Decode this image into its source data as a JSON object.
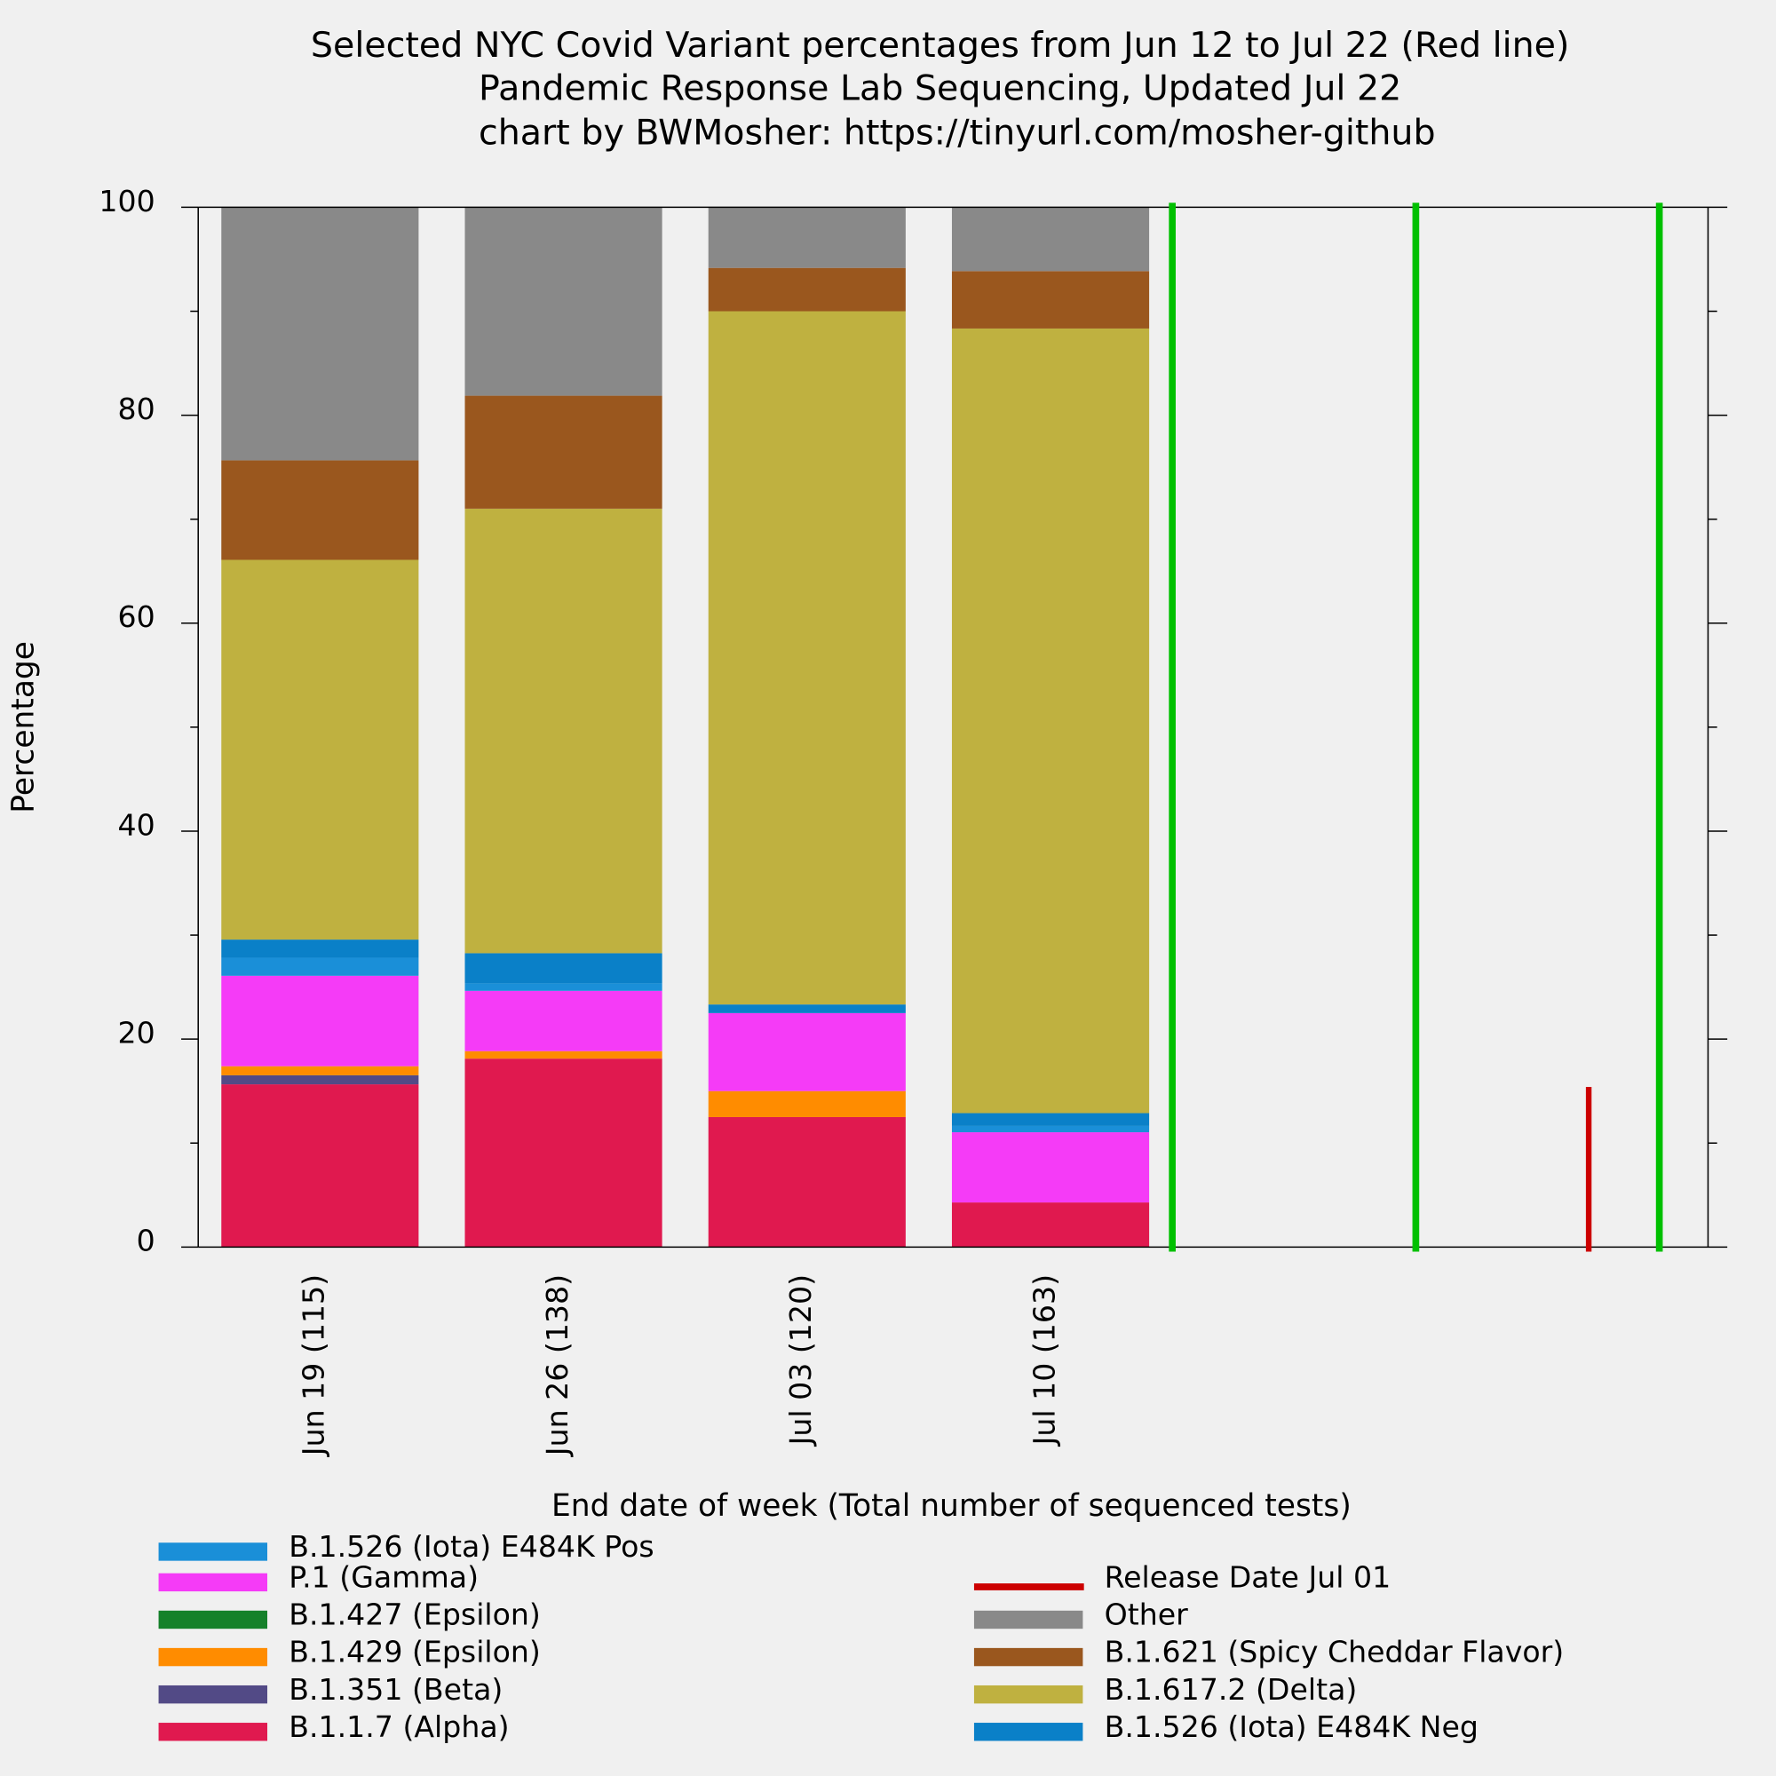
{
  "chart_data": {
    "type": "stacked_bar",
    "title": "Selected NYC Covid Variant percentages from Jun 12 to Jul 22 (Red line)",
    "subtitle": "Pandemic Response Lab Sequencing, Updated Jul 22",
    "credit": "chart by BWMosher: https://tinyurl.com/mosher-github",
    "x_label": "End date of week (Total number of sequenced tests)",
    "y_label": "Percentage",
    "categories": [
      "Jun 19 (115)",
      "Jun 26 (138)",
      "Jul 03 (120)",
      "Jul 10 (163)"
    ],
    "xlim": [
      -0.5,
      5.7
    ],
    "ylim": [
      0,
      100
    ],
    "yticks": [
      0,
      20,
      40,
      60,
      80,
      100
    ],
    "yminor": [
      10,
      30,
      50,
      70,
      90
    ],
    "series": [
      {
        "name": "B.1.1.7 (Alpha)",
        "color": "#e0194f",
        "values": [
          15.65,
          18.12,
          12.5,
          4.29
        ]
      },
      {
        "name": "B.1.351 (Beta)",
        "color": "#524a86",
        "values": [
          0.87,
          0,
          0,
          0
        ]
      },
      {
        "name": "B.1.429 (Epsilon)",
        "color": "#ff8c00",
        "values": [
          0.87,
          0.72,
          2.5,
          0
        ]
      },
      {
        "name": "B.1.427 (Epsilon)",
        "color": "#15812a",
        "values": [
          0,
          0,
          0,
          0
        ]
      },
      {
        "name": "P.1 (Gamma)",
        "color": "#f53bf7",
        "values": [
          8.7,
          5.8,
          7.5,
          6.75
        ]
      },
      {
        "name": "B.1.526 (Iota) E484K Pos",
        "color": "#1a8fd8",
        "values": [
          1.74,
          0.72,
          0,
          0.61
        ]
      },
      {
        "name": "B.1.526 (Iota) E484K Neg",
        "color": "#0a80c8",
        "values": [
          1.74,
          2.9,
          0.83,
          1.23
        ]
      },
      {
        "name": "B.1.617.2 (Delta)",
        "color": "#bfb140",
        "values": [
          36.52,
          42.75,
          66.67,
          75.46
        ]
      },
      {
        "name": "B.1.621 (Spicy Cheddar Flavor)",
        "color": "#9a571e",
        "values": [
          9.57,
          10.87,
          4.17,
          5.52
        ]
      },
      {
        "name": "Other",
        "color": "#898989",
        "values": [
          24.35,
          18.12,
          5.83,
          6.13
        ]
      }
    ],
    "week_lines": {
      "color": "#00c000",
      "x": [
        3.5,
        4.5,
        5.5
      ]
    },
    "release_line": {
      "name": "Release Date Jul 01",
      "color": "#cc0000",
      "x": 5.21,
      "value": 15.4
    }
  }
}
